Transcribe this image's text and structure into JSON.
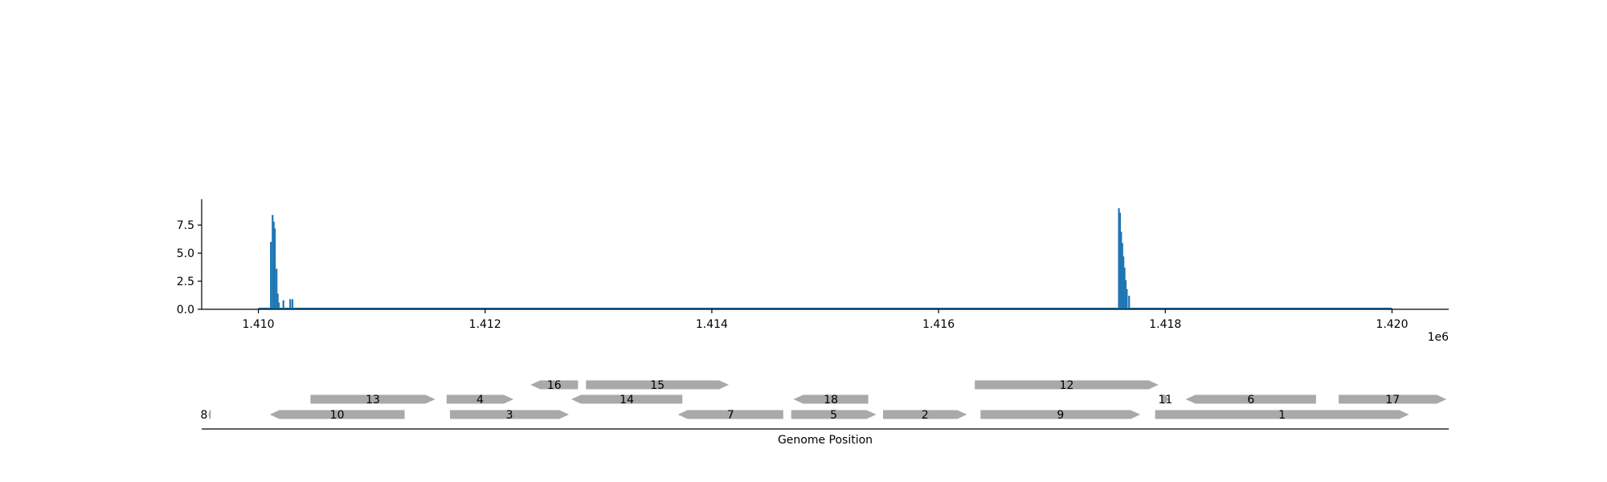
{
  "colors": {
    "bar": "#1f77b4",
    "gene": "#a9a9a9",
    "axis": "#000000",
    "text": "#000000"
  },
  "chart_data": [
    {
      "type": "bar",
      "title": "",
      "xlabel": "",
      "ylabel": "",
      "offset_label": "1e6",
      "xlim": [
        1409500,
        1420500
      ],
      "ylim": [
        0,
        9.8
      ],
      "x_ticks": [
        1410000,
        1412000,
        1414000,
        1416000,
        1418000,
        1420000
      ],
      "x_tick_labels": [
        "1.410",
        "1.412",
        "1.414",
        "1.416",
        "1.418",
        "1.420"
      ],
      "y_ticks": [
        0,
        2.5,
        5.0,
        7.5
      ],
      "y_tick_labels": [
        "0.0",
        "2.5",
        "5.0",
        "7.5"
      ],
      "baseline_range": [
        1410000,
        1420000
      ],
      "x": [
        1410110,
        1410125,
        1410135,
        1410145,
        1410160,
        1410170,
        1410180,
        1410220,
        1410280,
        1410300,
        1417590,
        1417600,
        1417610,
        1417620,
        1417630,
        1417640,
        1417650,
        1417660,
        1417680
      ],
      "values": [
        6.0,
        8.4,
        7.8,
        7.2,
        3.6,
        1.4,
        0.6,
        0.8,
        0.9,
        0.9,
        9.0,
        8.6,
        6.9,
        5.9,
        4.7,
        3.7,
        2.6,
        1.8,
        1.2
      ]
    },
    {
      "type": "gene_map",
      "xlabel": "Genome Position",
      "genes": [
        {
          "label": "8",
          "start": 1409560,
          "end": 1409580,
          "strand": -1,
          "row": 0
        },
        {
          "label": "10",
          "start": 1410100,
          "end": 1411290,
          "strand": -1,
          "row": 0
        },
        {
          "label": "3",
          "start": 1411690,
          "end": 1412740,
          "strand": 1,
          "row": 0
        },
        {
          "label": "7",
          "start": 1413700,
          "end": 1414630,
          "strand": -1,
          "row": 0
        },
        {
          "label": "5",
          "start": 1414700,
          "end": 1415450,
          "strand": 1,
          "row": 0
        },
        {
          "label": "2",
          "start": 1415510,
          "end": 1416250,
          "strand": 1,
          "row": 0
        },
        {
          "label": "9",
          "start": 1416370,
          "end": 1417780,
          "strand": 1,
          "row": 0
        },
        {
          "label": "1",
          "start": 1417910,
          "end": 1420150,
          "strand": 1,
          "row": 0
        },
        {
          "label": "13",
          "start": 1410460,
          "end": 1411560,
          "strand": 1,
          "row": 1
        },
        {
          "label": "4",
          "start": 1411660,
          "end": 1412250,
          "strand": 1,
          "row": 1
        },
        {
          "label": "14",
          "start": 1412760,
          "end": 1413740,
          "strand": -1,
          "row": 1
        },
        {
          "label": "18",
          "start": 1414720,
          "end": 1415380,
          "strand": -1,
          "row": 1
        },
        {
          "label": "11",
          "start": 1417970,
          "end": 1418030,
          "strand": 1,
          "row": 1
        },
        {
          "label": "6",
          "start": 1418180,
          "end": 1419330,
          "strand": -1,
          "row": 1
        },
        {
          "label": "17",
          "start": 1419530,
          "end": 1420480,
          "strand": 1,
          "row": 1
        },
        {
          "label": "16",
          "start": 1412400,
          "end": 1412820,
          "strand": -1,
          "row": 2
        },
        {
          "label": "15",
          "start": 1412890,
          "end": 1414150,
          "strand": 1,
          "row": 2
        },
        {
          "label": "12",
          "start": 1416320,
          "end": 1417940,
          "strand": 1,
          "row": 2
        }
      ]
    }
  ]
}
